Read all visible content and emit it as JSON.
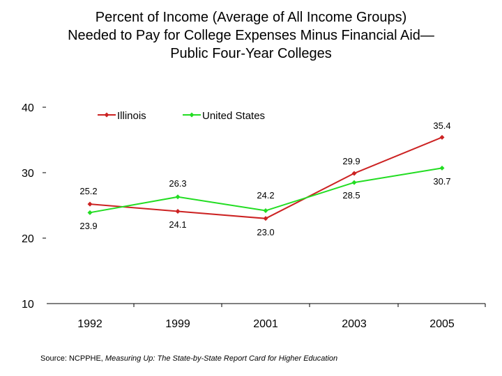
{
  "chart_data": {
    "type": "line",
    "title_lines": [
      "Percent of Income (Average of All Income Groups)",
      "Needed to Pay for College Expenses Minus Financial Aid—",
      "Public Four-Year Colleges"
    ],
    "categories": [
      "1992",
      "1999",
      "2001",
      "2003",
      "2005"
    ],
    "ylim": [
      10,
      40
    ],
    "yticks": [
      "40",
      "30",
      "20",
      "10"
    ],
    "series": [
      {
        "name": "Illinois",
        "color": "#cc2222",
        "values": [
          25.2,
          24.1,
          23.0,
          29.9,
          35.4
        ],
        "labels": [
          "25.2",
          "24.1",
          "23.0",
          "29.9",
          "35.4"
        ]
      },
      {
        "name": "United States",
        "color": "#22dd22",
        "values": [
          23.9,
          26.3,
          24.2,
          28.5,
          30.7
        ],
        "labels": [
          "23.9",
          "26.3",
          "24.2",
          "28.5",
          "30.7"
        ]
      }
    ],
    "legend_position": "top-left",
    "grid": false
  },
  "source": {
    "prefix": "Source:  NCPPHE, ",
    "title": "Measuring Up: The State-by-State Report Card for Higher Education"
  }
}
